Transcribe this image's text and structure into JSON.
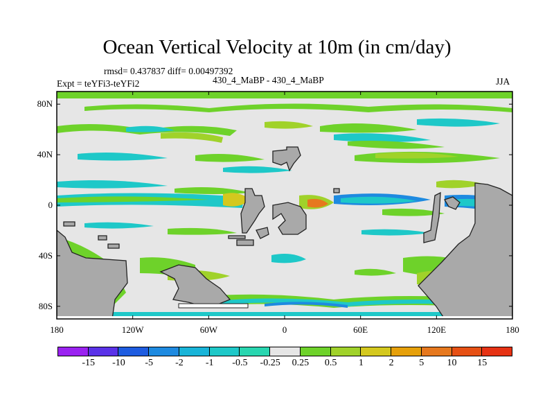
{
  "chart_data": {
    "type": "heatmap",
    "title": "Ocean Vertical Velocity at 10m (in cm/day)",
    "stats_text": "rmsd= 0.437837 diff= 0.00497392",
    "experiment_text": "Expt = teYFi3-teYFi2",
    "case_text": "430_4_MaBP - 430_4_MaBP",
    "season_text": "JJA",
    "x_ticks": [
      "180",
      "120W",
      "60W",
      "0",
      "60E",
      "120E",
      "180"
    ],
    "y_ticks": [
      "80N",
      "40N",
      "0",
      "40S",
      "80S"
    ],
    "x_range": [
      -180,
      180
    ],
    "y_range": [
      -90,
      90
    ],
    "colorbar_labels": [
      "-15",
      "-10",
      "-5",
      "-2",
      "-1",
      "-0.5",
      "-0.25",
      "0.25",
      "0.5",
      "1",
      "2",
      "5",
      "10",
      "15"
    ],
    "colorbar_colors": [
      "#9a22f0",
      "#5a32e8",
      "#1e5ce0",
      "#1e8ae0",
      "#18b4d8",
      "#1ec8c8",
      "#28d6b0",
      "#e6e6e6",
      "#6ed22a",
      "#a0d22a",
      "#d4c81e",
      "#e6a00a",
      "#e6781e",
      "#e65014",
      "#e63214"
    ],
    "land_color": "#a9a9a9"
  }
}
